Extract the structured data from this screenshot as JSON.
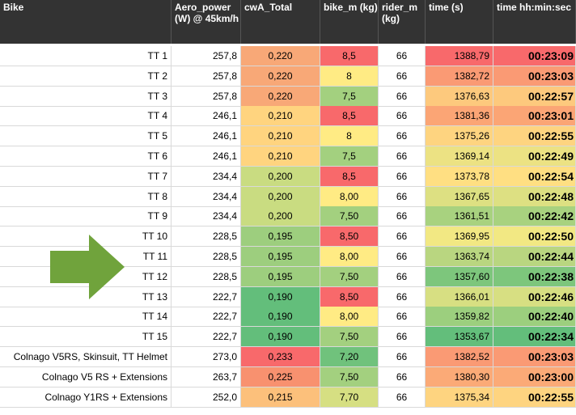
{
  "headers": [
    "Bike",
    "Aero_power (W) @ 45km/h",
    "cwA_Total",
    "bike_m (kg)",
    "rider_m (kg)",
    "time (s)",
    "time hh:min:sec"
  ],
  "colors": {
    "header_bg": "#333333",
    "header_text": "#ffffff",
    "arrow": "#70a33c",
    "scale_good": "#63be7b",
    "scale_mid": "#ffeb84",
    "scale_bad": "#f8696b"
  },
  "annotation": {
    "icon": "right-arrow-icon"
  },
  "rows": [
    {
      "bike": "TT 1",
      "aero": "257,8",
      "cwa": "0,220",
      "bike_m": "8,5",
      "rider_m": "66",
      "time_s": "1388,79",
      "time_hms": "00:23:09",
      "cwa_color": "#f8a877",
      "bikem_color": "#f8696b",
      "time_color": "#f8696b"
    },
    {
      "bike": "TT 2",
      "aero": "257,8",
      "cwa": "0,220",
      "bike_m": "8",
      "rider_m": "66",
      "time_s": "1382,72",
      "time_hms": "00:23:03",
      "cwa_color": "#f8a877",
      "bikem_color": "#ffeb84",
      "time_color": "#fa9a74"
    },
    {
      "bike": "TT 3",
      "aero": "257,8",
      "cwa": "0,220",
      "bike_m": "7,5",
      "rider_m": "66",
      "time_s": "1376,63",
      "time_hms": "00:22:57",
      "cwa_color": "#f8a877",
      "bikem_color": "#a3d07f",
      "time_color": "#fdc97d"
    },
    {
      "bike": "TT 4",
      "aero": "246,1",
      "cwa": "0,210",
      "bike_m": "8,5",
      "rider_m": "66",
      "time_s": "1381,36",
      "time_hms": "00:23:01",
      "cwa_color": "#ffd47f",
      "bikem_color": "#f8696b",
      "time_color": "#fba575"
    },
    {
      "bike": "TT 5",
      "aero": "246,1",
      "cwa": "0,210",
      "bike_m": "8",
      "rider_m": "66",
      "time_s": "1375,26",
      "time_hms": "00:22:55",
      "cwa_color": "#ffd47f",
      "bikem_color": "#ffeb84",
      "time_color": "#fed480"
    },
    {
      "bike": "TT 6",
      "aero": "246,1",
      "cwa": "0,210",
      "bike_m": "7,5",
      "rider_m": "66",
      "time_s": "1369,14",
      "time_hms": "00:22:49",
      "cwa_color": "#ffd47f",
      "bikem_color": "#a3d07f",
      "time_color": "#ece283"
    },
    {
      "bike": "TT 7",
      "aero": "234,4",
      "cwa": "0,200",
      "bike_m": "8,5",
      "rider_m": "66",
      "time_s": "1373,78",
      "time_hms": "00:22:54",
      "cwa_color": "#c9dc81",
      "bikem_color": "#f8696b",
      "time_color": "#ffdf82"
    },
    {
      "bike": "TT 8",
      "aero": "234,4",
      "cwa": "0,200",
      "bike_m": "8,00",
      "rider_m": "66",
      "time_s": "1367,65",
      "time_hms": "00:22:48",
      "cwa_color": "#c9dc81",
      "bikem_color": "#ffeb84",
      "time_color": "#dde082"
    },
    {
      "bike": "TT 9",
      "aero": "234,4",
      "cwa": "0,200",
      "bike_m": "7,50",
      "rider_m": "66",
      "time_s": "1361,51",
      "time_hms": "00:22:42",
      "cwa_color": "#c9dc81",
      "bikem_color": "#a3d07f",
      "time_color": "#a8d27f"
    },
    {
      "bike": "TT 10",
      "aero": "228,5",
      "cwa": "0,195",
      "bike_m": "8,50",
      "rider_m": "66",
      "time_s": "1369,95",
      "time_hms": "00:22:50",
      "cwa_color": "#9dce7e",
      "bikem_color": "#f8696b",
      "time_color": "#f2e883"
    },
    {
      "bike": "TT 11",
      "aero": "228,5",
      "cwa": "0,195",
      "bike_m": "8,00",
      "rider_m": "66",
      "time_s": "1363,74",
      "time_hms": "00:22:44",
      "cwa_color": "#9dce7e",
      "bikem_color": "#ffeb84",
      "time_color": "#b9d680"
    },
    {
      "bike": "TT 12",
      "aero": "228,5",
      "cwa": "0,195",
      "bike_m": "7,50",
      "rider_m": "66",
      "time_s": "1357,60",
      "time_hms": "00:22:38",
      "cwa_color": "#9dce7e",
      "bikem_color": "#a3d07f",
      "time_color": "#7dc67c"
    },
    {
      "bike": "TT 13",
      "aero": "222,7",
      "cwa": "0,190",
      "bike_m": "8,50",
      "rider_m": "66",
      "time_s": "1366,01",
      "time_hms": "00:22:46",
      "cwa_color": "#63be7b",
      "bikem_color": "#f8696b",
      "time_color": "#d7df82"
    },
    {
      "bike": "TT 14",
      "aero": "222,7",
      "cwa": "0,190",
      "bike_m": "8,00",
      "rider_m": "66",
      "time_s": "1359,82",
      "time_hms": "00:22:40",
      "cwa_color": "#63be7b",
      "bikem_color": "#ffeb84",
      "time_color": "#9ccf7e"
    },
    {
      "bike": "TT 15",
      "aero": "222,7",
      "cwa": "0,190",
      "bike_m": "7,50",
      "rider_m": "66",
      "time_s": "1353,67",
      "time_hms": "00:22:34",
      "cwa_color": "#63be7b",
      "bikem_color": "#a3d07f",
      "time_color": "#63be7b"
    },
    {
      "bike": "Colnago V5RS, Skinsuit, TT Helmet",
      "aero": "273,0",
      "cwa": "0,233",
      "bike_m": "7,20",
      "rider_m": "66",
      "time_s": "1382,52",
      "time_hms": "00:23:03",
      "cwa_color": "#f8696b",
      "bikem_color": "#70c27c",
      "time_color": "#fa9a74"
    },
    {
      "bike": "Colnago V5 RS + Extensions",
      "aero": "263,7",
      "cwa": "0,225",
      "bike_m": "7,50",
      "rider_m": "66",
      "time_s": "1380,30",
      "time_hms": "00:23:00",
      "cwa_color": "#f8916f",
      "bikem_color": "#a3d07f",
      "time_color": "#fbaa77"
    },
    {
      "bike": "Colnago Y1RS + Extensions",
      "aero": "252,0",
      "cwa": "0,215",
      "bike_m": "7,70",
      "rider_m": "66",
      "time_s": "1375,34",
      "time_hms": "00:22:55",
      "cwa_color": "#fcc07b",
      "bikem_color": "#d6df82",
      "time_color": "#fed480"
    }
  ]
}
